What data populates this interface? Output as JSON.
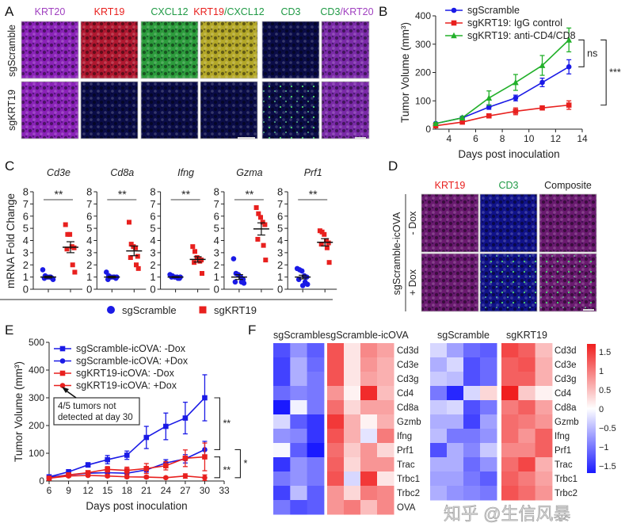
{
  "panel_letters": {
    "a": "A",
    "b": "B",
    "c": "C",
    "d": "D",
    "e": "E",
    "f": "F"
  },
  "colors": {
    "blue": "#1a1ae6",
    "red": "#e8201e",
    "green": "#22b02a",
    "purple": "#a040c0"
  },
  "panel_a": {
    "columns": [
      {
        "parts": [
          {
            "t": "KRT20",
            "c": "#a040c0"
          }
        ]
      },
      {
        "parts": [
          {
            "t": "KRT19",
            "c": "#e8201e"
          }
        ]
      },
      {
        "parts": [
          {
            "t": "CXCL12",
            "c": "#1f9a45"
          }
        ]
      },
      {
        "parts": [
          {
            "t": "KRT19",
            "c": "#e8201e"
          },
          {
            "t": "/CXCL12",
            "c": "#1f9a45"
          }
        ]
      },
      {
        "parts": [
          {
            "t": "CD3",
            "c": "#1f9a45"
          }
        ]
      },
      {
        "parts": [
          {
            "t": "CD3",
            "c": "#1f9a45"
          },
          {
            "t": "/KRT20",
            "c": "#a040c0"
          }
        ]
      }
    ],
    "rows": [
      "sgScramble",
      "sgKRT19"
    ],
    "image_tints": [
      [
        "#8a22b8",
        "#b01830",
        "#2c9c3c",
        "#b4a828",
        "#0a0c48",
        "#7a2aa8"
      ],
      [
        "#8a22b8",
        "#0a0c48",
        "#0a0c48",
        "#0a0c48",
        "#0a0c48",
        "#7a2aa8"
      ]
    ]
  },
  "panel_d": {
    "columns": [
      {
        "label": "KRT19",
        "color": "#e8201e"
      },
      {
        "label": "CD3",
        "color": "#1f9a45"
      },
      {
        "label": "Composite",
        "color": "#222222"
      }
    ],
    "group_label": "sgScramble-icOVA",
    "rows": [
      "- Dox",
      "+ Dox"
    ],
    "image_tints": [
      [
        "#6a1a70",
        "#10128a",
        "#6a1a70"
      ],
      [
        "#6a1a70",
        "#10128a",
        "#6a1a70"
      ]
    ]
  },
  "chart_data": [
    {
      "id": "B",
      "type": "line",
      "xlabel": "Days post inoculation",
      "ylabel": "Tumor Volume (mm³)",
      "xlim": [
        3,
        14
      ],
      "xticks": [
        4,
        6,
        8,
        10,
        12,
        14
      ],
      "ylim": [
        0,
        400
      ],
      "yticks": [
        0,
        100,
        200,
        300,
        400
      ],
      "legend": "top-left",
      "x": [
        3,
        5,
        7,
        9,
        11,
        13
      ],
      "series": [
        {
          "name": "sgScramble",
          "color": "#1a1ae6",
          "marker": "circle",
          "values": [
            20,
            40,
            78,
            110,
            165,
            220
          ],
          "error": [
            3,
            5,
            8,
            10,
            15,
            25
          ]
        },
        {
          "name": "sgKRT19: IgG control",
          "color": "#e8201e",
          "marker": "square",
          "values": [
            12,
            25,
            47,
            63,
            75,
            85
          ],
          "error": [
            3,
            4,
            5,
            12,
            6,
            15
          ]
        },
        {
          "name": "sgKRT19: anti-CD4/CD8",
          "color": "#22b02a",
          "marker": "triangle",
          "values": [
            20,
            40,
            110,
            165,
            225,
            315
          ],
          "error": [
            3,
            5,
            25,
            28,
            35,
            42
          ]
        }
      ],
      "annotations": [
        {
          "text": "ns",
          "between": [
            2,
            0
          ]
        },
        {
          "text": "***",
          "between": [
            2,
            1
          ]
        }
      ]
    },
    {
      "id": "C",
      "type": "scatter",
      "ylabel": "mRNA Fold Change",
      "ylim": [
        0,
        8
      ],
      "yticks": [
        0,
        1,
        2,
        3,
        4,
        5,
        6,
        7,
        8
      ],
      "legend": "bottom",
      "legend_entries": [
        {
          "name": "sgScramble",
          "color": "#1a1ae6",
          "marker": "circle"
        },
        {
          "name": "sgKRT19",
          "color": "#e8201e",
          "marker": "square"
        }
      ],
      "panels": [
        {
          "title": "Cd3e",
          "significance": "**",
          "sgScramble": [
            1.6,
            1.1,
            1.0,
            1.0,
            0.9,
            0.9,
            1.0,
            0.8
          ],
          "sgKRT19": [
            5.3,
            4.5,
            4.5,
            3.5,
            3.4,
            3.3,
            2.0,
            1.4
          ],
          "mean": [
            1.0,
            3.45
          ],
          "sem": [
            0.08,
            0.45
          ]
        },
        {
          "title": "Cd8a",
          "significance": "**",
          "sgScramble": [
            1.4,
            1.1,
            1.0,
            1.0,
            0.9,
            0.8,
            1.0,
            1.0
          ],
          "sgKRT19": [
            5.5,
            3.7,
            3.5,
            3.4,
            2.7,
            2.6,
            2.0,
            1.7
          ],
          "mean": [
            1.0,
            3.15
          ],
          "sem": [
            0.07,
            0.4
          ]
        },
        {
          "title": "Ifng",
          "significance": "**",
          "sgScramble": [
            1.2,
            1.1,
            1.0,
            1.0,
            0.9,
            1.0,
            0.9,
            1.0
          ],
          "sgKRT19": [
            3.5,
            3.1,
            2.6,
            2.5,
            2.4,
            2.2,
            2.3,
            1.3
          ],
          "mean": [
            1.0,
            2.45
          ],
          "sem": [
            0.04,
            0.22
          ]
        },
        {
          "title": "Gzma",
          "significance": "**",
          "sgScramble": [
            2.5,
            1.3,
            1.2,
            1.0,
            0.8,
            0.6,
            0.6,
            0.5
          ],
          "sgKRT19": [
            6.7,
            6.2,
            5.9,
            5.5,
            5.3,
            4.1,
            3.6,
            2.4
          ],
          "mean": [
            1.0,
            4.95
          ],
          "sem": [
            0.2,
            0.5
          ]
        },
        {
          "title": "Prf1",
          "significance": "**",
          "sgScramble": [
            1.7,
            1.6,
            1.5,
            1.1,
            1.0,
            0.8,
            0.6,
            0.4,
            0.3
          ],
          "sgKRT19": [
            4.8,
            4.7,
            4.5,
            4.0,
            3.8,
            3.7,
            3.4,
            2.2
          ],
          "mean": [
            1.0,
            3.85
          ],
          "sem": [
            0.15,
            0.3
          ]
        }
      ]
    },
    {
      "id": "E",
      "type": "line",
      "xlabel": "Days post inoculation",
      "ylabel": "Tumor Volume (mm³)",
      "xlim": [
        6,
        33
      ],
      "xticks": [
        6,
        9,
        12,
        15,
        18,
        21,
        24,
        27,
        30,
        33
      ],
      "ylim": [
        0,
        500
      ],
      "yticks": [
        0,
        100,
        200,
        300,
        400,
        500
      ],
      "legend": "top-left",
      "x": [
        6,
        9,
        12,
        15,
        18,
        21,
        24,
        27,
        30
      ],
      "series": [
        {
          "name": "sgScramble-icOVA: -Dox",
          "color": "#1a1ae6",
          "marker": "square",
          "values": [
            15,
            33,
            58,
            77,
            93,
            157,
            197,
            227,
            300
          ],
          "error": [
            5,
            8,
            8,
            15,
            15,
            40,
            48,
            57,
            83
          ]
        },
        {
          "name": "sgScramble-icOVA: +Dox",
          "color": "#1a1ae6",
          "marker": "circle",
          "values": [
            13,
            22,
            28,
            30,
            28,
            40,
            65,
            80,
            113
          ],
          "error": [
            3,
            5,
            5,
            5,
            5,
            8,
            12,
            15,
            30
          ]
        },
        {
          "name": "sgKRT19-icOVA: -Dox",
          "color": "#e8201e",
          "marker": "square",
          "values": [
            10,
            22,
            30,
            42,
            38,
            45,
            55,
            82,
            87
          ],
          "error": [
            3,
            5,
            6,
            10,
            12,
            18,
            15,
            30,
            50
          ]
        },
        {
          "name": "sgKRT19-icOVA: +Dox",
          "color": "#e8201e",
          "marker": "circle",
          "values": [
            10,
            18,
            20,
            18,
            15,
            14,
            12,
            18,
            12
          ],
          "error": [
            2,
            4,
            4,
            5,
            5,
            5,
            4,
            8,
            10
          ]
        }
      ],
      "callout": "4/5 tumors not detected at day 30",
      "annotations": [
        {
          "text": "**",
          "between": [
            0,
            1
          ]
        },
        {
          "text": "**",
          "between": [
            2,
            3
          ]
        },
        {
          "text": "*",
          "between": [
            1,
            3
          ]
        }
      ]
    },
    {
      "id": "F",
      "type": "heatmap",
      "colorbar": {
        "min": -1.5,
        "max": 1.5,
        "ticks": [
          "1.5",
          "1",
          "0.5",
          "0",
          "−0.5",
          "−1",
          "−1.5"
        ],
        "tick_values": [
          1.5,
          1,
          0.5,
          0,
          -0.5,
          -1,
          -1.5
        ],
        "low_color": "#1a1aff",
        "mid_color": "#ffffff",
        "high_color": "#f01e1e"
      },
      "heatmaps": [
        {
          "groups": [
            "sgScramble",
            "sgScramble-icOVA"
          ],
          "rows": [
            "Cd3d",
            "Cd3e",
            "Cd3g",
            "Cd4",
            "Cd8a",
            "Gzmb",
            "Ifng",
            "Prf1",
            "Trac",
            "Trbc1",
            "Trbc2",
            "OVA"
          ],
          "values": [
            [
              [
                -1.3,
                -0.8,
                -1.2
              ],
              [
                -1.4,
                -0.6,
                -1.1
              ],
              [
                -1.4,
                -0.6,
                -1.0
              ],
              [
                -1.1,
                -0.9,
                -1.0
              ],
              [
                -1.7,
                -0.1,
                -1.0
              ],
              [
                -0.3,
                -1.2,
                -1.5
              ],
              [
                -0.8,
                -0.9,
                -1.5
              ],
              [
                -0.05,
                -1.2,
                -1.7
              ],
              [
                -1.5,
                -0.8,
                -1.0
              ],
              [
                -1.0,
                -0.8,
                -1.0
              ],
              [
                -1.4,
                -0.5,
                -1.2
              ],
              [
                -1.0,
                -1.3,
                -1.2
              ]
            ],
            [
              [
                1.3,
                0.2,
                0.9,
                0.7
              ],
              [
                1.3,
                0.2,
                0.8,
                0.6
              ],
              [
                1.3,
                0.2,
                0.7,
                0.6
              ],
              [
                0.8,
                0.1,
                1.6,
                0.5
              ],
              [
                1.1,
                0.3,
                0.7,
                0.7
              ],
              [
                1.5,
                0.6,
                0.1,
                0.6
              ],
              [
                1.3,
                0.6,
                -0.2,
                1.0
              ],
              [
                1.1,
                0.4,
                0.8,
                0.3
              ],
              [
                1.2,
                0.3,
                0.8,
                0.8
              ],
              [
                1.3,
                -0.3,
                1.5,
                0.2
              ],
              [
                0.8,
                0.3,
                1.0,
                0.9
              ],
              [
                0.8,
                1.0,
                0.5,
                0.9
              ]
            ]
          ]
        },
        {
          "groups": [
            "sgScramble",
            "sgKRT19"
          ],
          "rows": [
            "Cd3d",
            "Cd3e",
            "Cd3g",
            "Cd4",
            "Cd8a",
            "Gzmb",
            "Ifng",
            "Prf1",
            "Trac",
            "Trbc1",
            "Trbc2"
          ],
          "values": [
            [
              [
                -0.3,
                -0.7,
                -1.1,
                -1.2
              ],
              [
                -0.6,
                -0.3,
                -1.3,
                -1.1
              ],
              [
                -0.4,
                -0.5,
                -1.3,
                -1.1
              ],
              [
                -1.0,
                -1.6,
                -0.3,
                0.3
              ],
              [
                -0.4,
                -0.3,
                -1.3,
                -1.0
              ],
              [
                -0.6,
                -0.6,
                -1.4,
                -0.7
              ],
              [
                -0.5,
                -1.0,
                -1.0,
                -0.8
              ],
              [
                -1.3,
                -0.6,
                -0.9,
                -0.4
              ],
              [
                -0.6,
                -0.6,
                -1.1,
                -0.8
              ],
              [
                -0.7,
                -0.7,
                -1.0,
                -1.2
              ],
              [
                -0.6,
                -0.8,
                -0.9,
                -1.0
              ]
            ],
            [
              [
                1.4,
                1.2,
                0.5
              ],
              [
                1.2,
                1.3,
                0.6
              ],
              [
                1.2,
                1.2,
                0.6
              ],
              [
                1.7,
                0.4,
                0.1
              ],
              [
                1.0,
                1.2,
                0.7
              ],
              [
                1.1,
                1.0,
                0.8
              ],
              [
                1.1,
                0.8,
                1.2
              ],
              [
                0.9,
                0.9,
                1.2
              ],
              [
                1.1,
                1.4,
                0.6
              ],
              [
                1.2,
                1.0,
                0.7
              ],
              [
                1.3,
                1.1,
                0.8
              ]
            ]
          ]
        }
      ]
    }
  ],
  "watermark": "知乎 @生信风暴"
}
